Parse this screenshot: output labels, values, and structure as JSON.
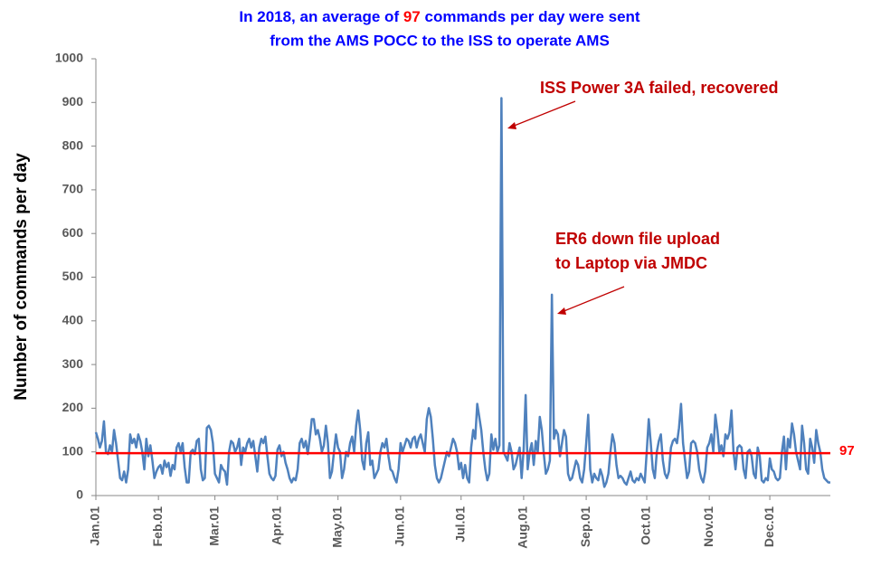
{
  "chart_data": {
    "type": "line",
    "title_lines": [
      {
        "before": "In 2018, an average of",
        "after": "commands per day were sent"
      },
      "from the AMS POCC to the ISS to operate AMS"
    ],
    "y_label": "Number of commands per day",
    "average": 97,
    "average_color": "#ff0000",
    "annotations": [
      {
        "lines": [
          "ISS Power 3A failed, recovered"
        ]
      },
      {
        "lines": [
          "ER6 down file upload",
          "to Laptop via JMDC"
        ]
      }
    ],
    "ylim": [
      0,
      1000
    ],
    "yticks": [
      0,
      100,
      200,
      300,
      400,
      500,
      600,
      700,
      800,
      900,
      1000
    ],
    "grid": false,
    "categories": [
      "Jan.01",
      null,
      null,
      null,
      null,
      null,
      null,
      null,
      null,
      null,
      null,
      null,
      null,
      null,
      null,
      null,
      null,
      null,
      null,
      null,
      null,
      null,
      null,
      null,
      null,
      null,
      null,
      null,
      null,
      null,
      null,
      "Feb.01",
      null,
      null,
      null,
      null,
      null,
      null,
      null,
      null,
      null,
      null,
      null,
      null,
      null,
      null,
      null,
      null,
      null,
      null,
      null,
      null,
      null,
      null,
      null,
      null,
      null,
      null,
      null,
      "Mar.01",
      null,
      null,
      null,
      null,
      null,
      null,
      null,
      null,
      null,
      null,
      null,
      null,
      null,
      null,
      null,
      null,
      null,
      null,
      null,
      null,
      null,
      null,
      null,
      null,
      null,
      null,
      null,
      null,
      null,
      null,
      "Apr.01",
      null,
      null,
      null,
      null,
      null,
      null,
      null,
      null,
      null,
      null,
      null,
      null,
      null,
      null,
      null,
      null,
      null,
      null,
      null,
      null,
      null,
      null,
      null,
      null,
      null,
      null,
      null,
      null,
      null,
      "May.01",
      null,
      null,
      null,
      null,
      null,
      null,
      null,
      null,
      null,
      null,
      null,
      null,
      null,
      null,
      null,
      null,
      null,
      null,
      null,
      null,
      null,
      null,
      null,
      null,
      null,
      null,
      null,
      null,
      null,
      null,
      "Jun.01",
      null,
      null,
      null,
      null,
      null,
      null,
      null,
      null,
      null,
      null,
      null,
      null,
      null,
      null,
      null,
      null,
      null,
      null,
      null,
      null,
      null,
      null,
      null,
      null,
      null,
      null,
      null,
      null,
      null,
      "Jul.01",
      null,
      null,
      null,
      null,
      null,
      null,
      null,
      null,
      null,
      null,
      null,
      null,
      null,
      null,
      null,
      null,
      null,
      null,
      null,
      null,
      null,
      null,
      null,
      null,
      null,
      null,
      null,
      null,
      null,
      null,
      "Aug.01",
      null,
      null,
      null,
      null,
      null,
      null,
      null,
      null,
      null,
      null,
      null,
      null,
      null,
      null,
      null,
      null,
      null,
      null,
      null,
      null,
      null,
      null,
      null,
      null,
      null,
      null,
      null,
      null,
      null,
      null,
      "Sep.01",
      null,
      null,
      null,
      null,
      null,
      null,
      null,
      null,
      null,
      null,
      null,
      null,
      null,
      null,
      null,
      null,
      null,
      null,
      null,
      null,
      null,
      null,
      null,
      null,
      null,
      null,
      null,
      null,
      null,
      "Oct.01",
      null,
      null,
      null,
      null,
      null,
      null,
      null,
      null,
      null,
      null,
      null,
      null,
      null,
      null,
      null,
      null,
      null,
      null,
      null,
      null,
      null,
      null,
      null,
      null,
      null,
      null,
      null,
      null,
      null,
      null,
      "Nov.01",
      null,
      null,
      null,
      null,
      null,
      null,
      null,
      null,
      null,
      null,
      null,
      null,
      null,
      null,
      null,
      null,
      null,
      null,
      null,
      null,
      null,
      null,
      null,
      null,
      null,
      null,
      null,
      null,
      null,
      "Dec.01",
      null,
      null,
      null,
      null,
      null,
      null,
      null,
      null,
      null,
      null,
      null,
      null,
      null,
      null,
      null,
      null,
      null,
      null,
      null,
      null,
      null,
      null,
      null,
      null,
      null,
      null,
      null,
      null,
      null,
      null
    ],
    "series": [
      {
        "color": "#4f81bd",
        "values": [
          145,
          130,
          110,
          125,
          170,
          100,
          95,
          115,
          100,
          150,
          120,
          80,
          40,
          35,
          55,
          30,
          60,
          140,
          120,
          130,
          110,
          140,
          125,
          100,
          60,
          130,
          90,
          115,
          80,
          40,
          55,
          65,
          70,
          50,
          80,
          65,
          75,
          45,
          70,
          60,
          110,
          120,
          100,
          120,
          65,
          30,
          30,
          100,
          105,
          95,
          125,
          130,
          60,
          35,
          40,
          155,
          160,
          150,
          120,
          50,
          40,
          30,
          70,
          60,
          55,
          25,
          100,
          125,
          120,
          100,
          110,
          130,
          70,
          110,
          100,
          120,
          130,
          110,
          125,
          90,
          55,
          110,
          130,
          120,
          135,
          90,
          50,
          40,
          35,
          45,
          105,
          115,
          90,
          100,
          75,
          60,
          40,
          30,
          40,
          35,
          60,
          120,
          130,
          110,
          125,
          95,
          130,
          175,
          175,
          140,
          150,
          130,
          100,
          115,
          160,
          120,
          40,
          55,
          100,
          140,
          110,
          100,
          40,
          60,
          100,
          90,
          120,
          135,
          100,
          160,
          195,
          150,
          80,
          60,
          120,
          145,
          70,
          80,
          40,
          50,
          60,
          100,
          120,
          110,
          130,
          90,
          60,
          55,
          40,
          30,
          60,
          120,
          100,
          115,
          130,
          125,
          110,
          130,
          135,
          110,
          130,
          140,
          120,
          100,
          175,
          200,
          180,
          130,
          70,
          40,
          30,
          40,
          60,
          80,
          100,
          90,
          110,
          130,
          120,
          100,
          60,
          75,
          40,
          70,
          40,
          30,
          110,
          150,
          130,
          210,
          180,
          150,
          100,
          60,
          35,
          50,
          140,
          105,
          130,
          100,
          115,
          910,
          100,
          90,
          80,
          120,
          100,
          60,
          70,
          90,
          110,
          40,
          105,
          230,
          60,
          100,
          120,
          70,
          125,
          100,
          180,
          150,
          95,
          50,
          60,
          80,
          460,
          130,
          150,
          140,
          90,
          120,
          150,
          135,
          50,
          35,
          40,
          60,
          80,
          70,
          40,
          30,
          60,
          120,
          185,
          60,
          30,
          50,
          40,
          35,
          60,
          45,
          20,
          30,
          50,
          100,
          140,
          120,
          70,
          40,
          45,
          40,
          30,
          25,
          40,
          55,
          35,
          30,
          40,
          35,
          50,
          40,
          30,
          100,
          175,
          120,
          60,
          40,
          100,
          125,
          140,
          80,
          50,
          40,
          55,
          110,
          125,
          130,
          120,
          155,
          210,
          120,
          80,
          40,
          55,
          120,
          125,
          120,
          100,
          60,
          40,
          30,
          55,
          110,
          120,
          140,
          100,
          185,
          150,
          100,
          115,
          90,
          140,
          130,
          145,
          195,
          100,
          60,
          110,
          115,
          110,
          60,
          40,
          100,
          105,
          90,
          50,
          40,
          110,
          90,
          35,
          30,
          40,
          35,
          85,
          60,
          55,
          40,
          35,
          40,
          100,
          135,
          60,
          130,
          110,
          165,
          140,
          100,
          80,
          60,
          160,
          120,
          60,
          50,
          130,
          110,
          75,
          150,
          120,
          100,
          60,
          40,
          35,
          30,
          30
        ]
      }
    ]
  }
}
